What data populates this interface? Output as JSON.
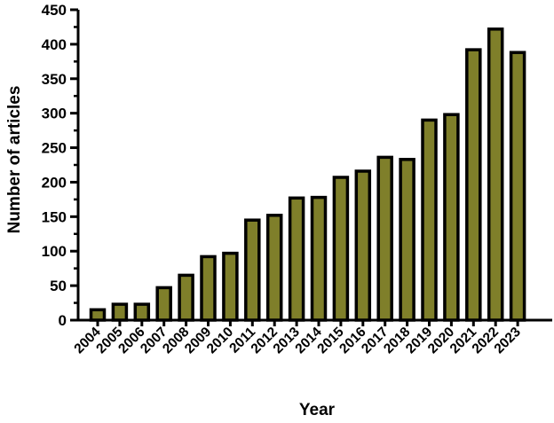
{
  "chart_data": {
    "type": "bar",
    "title": "",
    "xlabel": "Year",
    "ylabel": "Number of articles",
    "categories": [
      "2004",
      "2005",
      "2006",
      "2007",
      "2008",
      "2009",
      "2010",
      "2011",
      "2012",
      "2013",
      "2014",
      "2015",
      "2016",
      "2017",
      "2018",
      "2019",
      "2020",
      "2021",
      "2022",
      "2023"
    ],
    "values": [
      15,
      23,
      23,
      47,
      65,
      92,
      97,
      145,
      152,
      177,
      178,
      207,
      216,
      236,
      233,
      290,
      298,
      392,
      422,
      388
    ],
    "ylim": [
      0,
      450
    ],
    "yticks": [
      "0",
      "50",
      "100",
      "150",
      "200",
      "250",
      "300",
      "350",
      "400",
      "450"
    ],
    "grid": false,
    "legend": "none",
    "colors": {
      "bar_fill": "#7f7f2a",
      "bar_stroke": "#000000",
      "axis": "#000000"
    }
  }
}
